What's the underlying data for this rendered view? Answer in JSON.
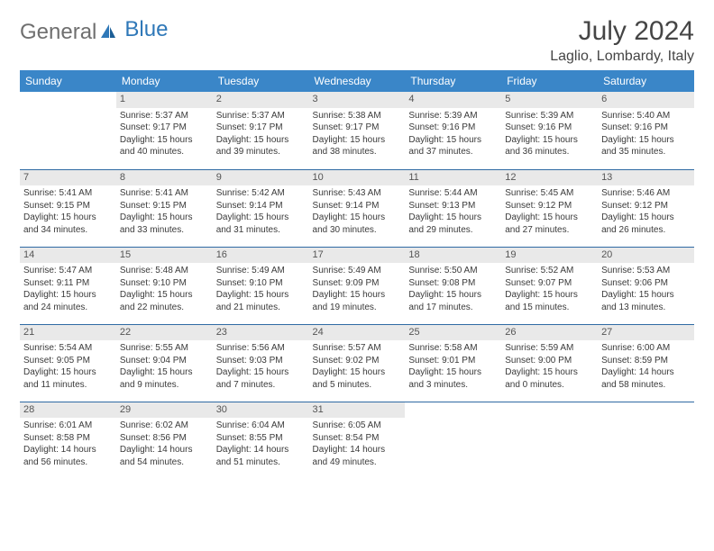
{
  "brand": {
    "part1": "General",
    "part2": "Blue"
  },
  "title": "July 2024",
  "location": "Laglio, Lombardy, Italy",
  "colors": {
    "header_bg": "#3a86c8",
    "header_fg": "#ffffff",
    "row_border": "#2f6aa3",
    "daynum_bg": "#e9e9e9",
    "text": "#3a3a3a",
    "brand_gray": "#6f6f6f",
    "brand_blue": "#2f78b8"
  },
  "weekdays": [
    "Sunday",
    "Monday",
    "Tuesday",
    "Wednesday",
    "Thursday",
    "Friday",
    "Saturday"
  ],
  "weeks": [
    [
      null,
      {
        "day": "1",
        "sunrise": "Sunrise: 5:37 AM",
        "sunset": "Sunset: 9:17 PM",
        "daylight1": "Daylight: 15 hours",
        "daylight2": "and 40 minutes."
      },
      {
        "day": "2",
        "sunrise": "Sunrise: 5:37 AM",
        "sunset": "Sunset: 9:17 PM",
        "daylight1": "Daylight: 15 hours",
        "daylight2": "and 39 minutes."
      },
      {
        "day": "3",
        "sunrise": "Sunrise: 5:38 AM",
        "sunset": "Sunset: 9:17 PM",
        "daylight1": "Daylight: 15 hours",
        "daylight2": "and 38 minutes."
      },
      {
        "day": "4",
        "sunrise": "Sunrise: 5:39 AM",
        "sunset": "Sunset: 9:16 PM",
        "daylight1": "Daylight: 15 hours",
        "daylight2": "and 37 minutes."
      },
      {
        "day": "5",
        "sunrise": "Sunrise: 5:39 AM",
        "sunset": "Sunset: 9:16 PM",
        "daylight1": "Daylight: 15 hours",
        "daylight2": "and 36 minutes."
      },
      {
        "day": "6",
        "sunrise": "Sunrise: 5:40 AM",
        "sunset": "Sunset: 9:16 PM",
        "daylight1": "Daylight: 15 hours",
        "daylight2": "and 35 minutes."
      }
    ],
    [
      {
        "day": "7",
        "sunrise": "Sunrise: 5:41 AM",
        "sunset": "Sunset: 9:15 PM",
        "daylight1": "Daylight: 15 hours",
        "daylight2": "and 34 minutes."
      },
      {
        "day": "8",
        "sunrise": "Sunrise: 5:41 AM",
        "sunset": "Sunset: 9:15 PM",
        "daylight1": "Daylight: 15 hours",
        "daylight2": "and 33 minutes."
      },
      {
        "day": "9",
        "sunrise": "Sunrise: 5:42 AM",
        "sunset": "Sunset: 9:14 PM",
        "daylight1": "Daylight: 15 hours",
        "daylight2": "and 31 minutes."
      },
      {
        "day": "10",
        "sunrise": "Sunrise: 5:43 AM",
        "sunset": "Sunset: 9:14 PM",
        "daylight1": "Daylight: 15 hours",
        "daylight2": "and 30 minutes."
      },
      {
        "day": "11",
        "sunrise": "Sunrise: 5:44 AM",
        "sunset": "Sunset: 9:13 PM",
        "daylight1": "Daylight: 15 hours",
        "daylight2": "and 29 minutes."
      },
      {
        "day": "12",
        "sunrise": "Sunrise: 5:45 AM",
        "sunset": "Sunset: 9:12 PM",
        "daylight1": "Daylight: 15 hours",
        "daylight2": "and 27 minutes."
      },
      {
        "day": "13",
        "sunrise": "Sunrise: 5:46 AM",
        "sunset": "Sunset: 9:12 PM",
        "daylight1": "Daylight: 15 hours",
        "daylight2": "and 26 minutes."
      }
    ],
    [
      {
        "day": "14",
        "sunrise": "Sunrise: 5:47 AM",
        "sunset": "Sunset: 9:11 PM",
        "daylight1": "Daylight: 15 hours",
        "daylight2": "and 24 minutes."
      },
      {
        "day": "15",
        "sunrise": "Sunrise: 5:48 AM",
        "sunset": "Sunset: 9:10 PM",
        "daylight1": "Daylight: 15 hours",
        "daylight2": "and 22 minutes."
      },
      {
        "day": "16",
        "sunrise": "Sunrise: 5:49 AM",
        "sunset": "Sunset: 9:10 PM",
        "daylight1": "Daylight: 15 hours",
        "daylight2": "and 21 minutes."
      },
      {
        "day": "17",
        "sunrise": "Sunrise: 5:49 AM",
        "sunset": "Sunset: 9:09 PM",
        "daylight1": "Daylight: 15 hours",
        "daylight2": "and 19 minutes."
      },
      {
        "day": "18",
        "sunrise": "Sunrise: 5:50 AM",
        "sunset": "Sunset: 9:08 PM",
        "daylight1": "Daylight: 15 hours",
        "daylight2": "and 17 minutes."
      },
      {
        "day": "19",
        "sunrise": "Sunrise: 5:52 AM",
        "sunset": "Sunset: 9:07 PM",
        "daylight1": "Daylight: 15 hours",
        "daylight2": "and 15 minutes."
      },
      {
        "day": "20",
        "sunrise": "Sunrise: 5:53 AM",
        "sunset": "Sunset: 9:06 PM",
        "daylight1": "Daylight: 15 hours",
        "daylight2": "and 13 minutes."
      }
    ],
    [
      {
        "day": "21",
        "sunrise": "Sunrise: 5:54 AM",
        "sunset": "Sunset: 9:05 PM",
        "daylight1": "Daylight: 15 hours",
        "daylight2": "and 11 minutes."
      },
      {
        "day": "22",
        "sunrise": "Sunrise: 5:55 AM",
        "sunset": "Sunset: 9:04 PM",
        "daylight1": "Daylight: 15 hours",
        "daylight2": "and 9 minutes."
      },
      {
        "day": "23",
        "sunrise": "Sunrise: 5:56 AM",
        "sunset": "Sunset: 9:03 PM",
        "daylight1": "Daylight: 15 hours",
        "daylight2": "and 7 minutes."
      },
      {
        "day": "24",
        "sunrise": "Sunrise: 5:57 AM",
        "sunset": "Sunset: 9:02 PM",
        "daylight1": "Daylight: 15 hours",
        "daylight2": "and 5 minutes."
      },
      {
        "day": "25",
        "sunrise": "Sunrise: 5:58 AM",
        "sunset": "Sunset: 9:01 PM",
        "daylight1": "Daylight: 15 hours",
        "daylight2": "and 3 minutes."
      },
      {
        "day": "26",
        "sunrise": "Sunrise: 5:59 AM",
        "sunset": "Sunset: 9:00 PM",
        "daylight1": "Daylight: 15 hours",
        "daylight2": "and 0 minutes."
      },
      {
        "day": "27",
        "sunrise": "Sunrise: 6:00 AM",
        "sunset": "Sunset: 8:59 PM",
        "daylight1": "Daylight: 14 hours",
        "daylight2": "and 58 minutes."
      }
    ],
    [
      {
        "day": "28",
        "sunrise": "Sunrise: 6:01 AM",
        "sunset": "Sunset: 8:58 PM",
        "daylight1": "Daylight: 14 hours",
        "daylight2": "and 56 minutes."
      },
      {
        "day": "29",
        "sunrise": "Sunrise: 6:02 AM",
        "sunset": "Sunset: 8:56 PM",
        "daylight1": "Daylight: 14 hours",
        "daylight2": "and 54 minutes."
      },
      {
        "day": "30",
        "sunrise": "Sunrise: 6:04 AM",
        "sunset": "Sunset: 8:55 PM",
        "daylight1": "Daylight: 14 hours",
        "daylight2": "and 51 minutes."
      },
      {
        "day": "31",
        "sunrise": "Sunrise: 6:05 AM",
        "sunset": "Sunset: 8:54 PM",
        "daylight1": "Daylight: 14 hours",
        "daylight2": "and 49 minutes."
      },
      null,
      null,
      null
    ]
  ]
}
